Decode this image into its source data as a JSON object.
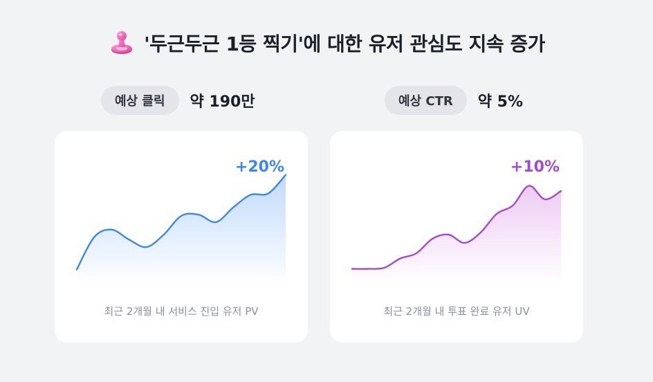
{
  "header": {
    "title": "'두근두근 1등 찍기'에 대한 유저 관심도 지속 증가",
    "icon": "stamp-icon"
  },
  "metrics": [
    {
      "label": "예상 클릭",
      "value": "약 190만"
    },
    {
      "label": "예상 CTR",
      "value": "약 5%"
    }
  ],
  "chart_data": [
    {
      "type": "area",
      "title": "",
      "change_label": "+20%",
      "caption": "최근 2개월 내 서비스 진입 유저 PV",
      "color": "#3f86ea",
      "fill_color": "#bcd8fb",
      "x": [
        0,
        1,
        2,
        3,
        4,
        5,
        6,
        7,
        8,
        9,
        10,
        11,
        12
      ],
      "values": [
        12,
        38,
        44,
        36,
        30,
        40,
        55,
        56,
        50,
        62,
        72,
        73,
        88
      ],
      "ylim": [
        0,
        100
      ],
      "grid": false,
      "legend": false
    },
    {
      "type": "area",
      "title": "",
      "change_label": "+10%",
      "caption": "최근 2개월 내 투표 완료 유저 UV",
      "color": "#a449d6",
      "fill_color": "#ecc9f3",
      "x": [
        0,
        1,
        2,
        3,
        4,
        5,
        6,
        7,
        8,
        9,
        10,
        11,
        12,
        13
      ],
      "values": [
        15,
        15,
        16,
        25,
        30,
        44,
        48,
        40,
        50,
        68,
        76,
        95,
        82,
        90
      ],
      "ylim": [
        0,
        100
      ],
      "grid": false,
      "legend": false
    }
  ]
}
